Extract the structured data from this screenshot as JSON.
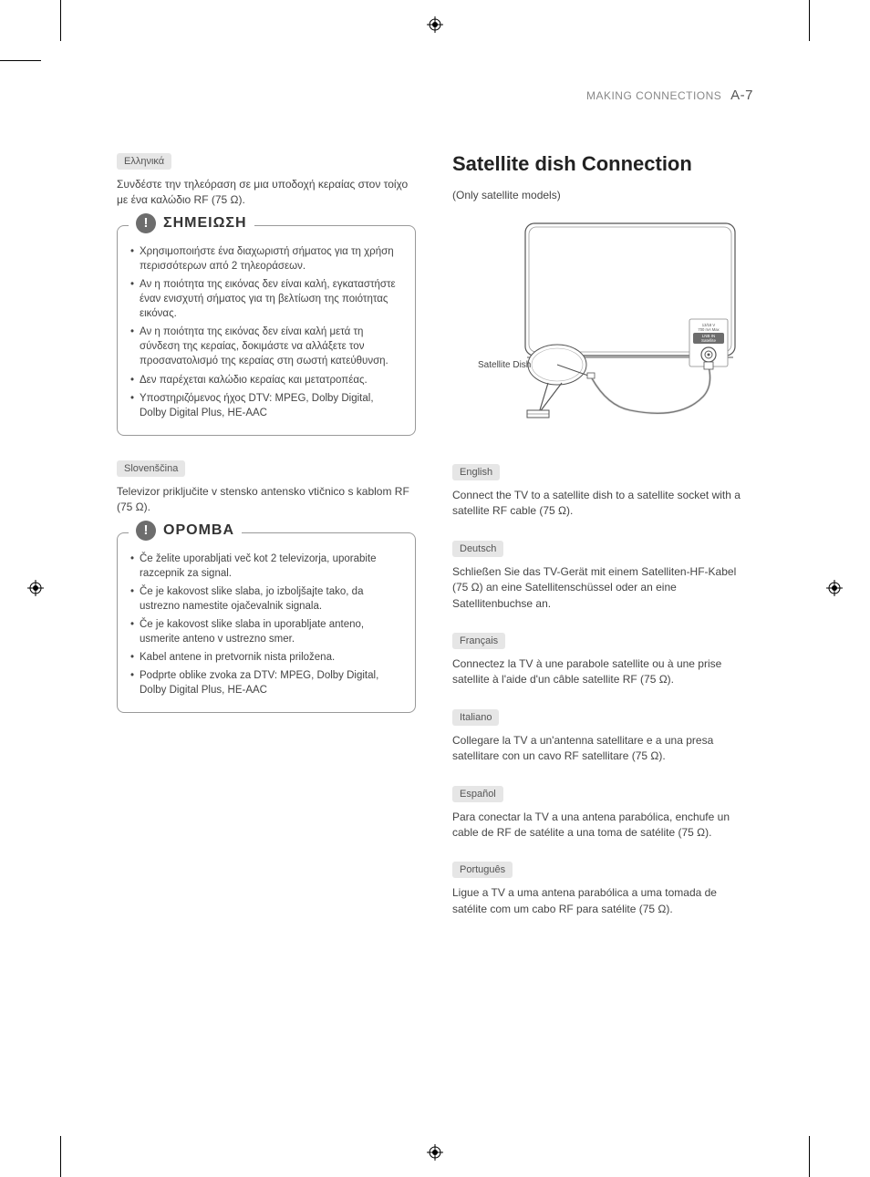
{
  "header": {
    "section": "MAKING CONNECTIONS",
    "page": "A-7"
  },
  "left": {
    "greek": {
      "tag": "Ελληνικά",
      "text": "Συνδέστε την τηλεόραση σε μια υποδοχή κεραίας στον τοίχο με ένα καλώδιο RF (75 Ω).",
      "note_title": "ΣΗΜΕΙΩΣΗ",
      "bullets": [
        "Χρησιμοποιήστε ένα διαχωριστή σήματος για τη χρήση περισσότερων από 2 τηλεοράσεων.",
        "Αν η ποιότητα της εικόνας δεν είναι καλή, εγκαταστήστε έναν ενισχυτή σήματος για τη βελτίωση της ποιότητας εικόνας.",
        "Αν η ποιότητα της εικόνας δεν είναι καλή μετά τη σύνδεση της κεραίας, δοκιμάστε να αλλάξετε τον προσανατολισμό της κεραίας στη σωστή κατεύθυνση.",
        "Δεν παρέχεται καλώδιο κεραίας και μετατροπέας.",
        "Υποστηριζόμενος ήχος DTV: MPEG, Dolby Digital, Dolby Digital Plus, HE-AAC"
      ]
    },
    "slovene": {
      "tag": "Slovenščina",
      "text": "Televizor priključite v stensko antensko vtičnico s kablom RF (75 Ω).",
      "note_title": "OPOMBA",
      "bullets": [
        "Če želite uporabljati več kot 2 televizorja, uporabite razcepnik za signal.",
        "Če je kakovost slike slaba, jo izboljšajte tako, da ustrezno namestite ojačevalnik signala.",
        "Če je kakovost slike slaba in uporabljate anteno, usmerite anteno v ustrezno smer.",
        "Kabel antene in pretvornik nista priložena.",
        "Podprte oblike zvoka za DTV: MPEG, Dolby Digital, Dolby Digital Plus, HE-AAC"
      ]
    }
  },
  "right": {
    "title": "Satellite dish Connection",
    "subtitle": "(Only satellite models)",
    "diagram": {
      "dish_label": "Satellite Dish",
      "port_line1": "13/18 V",
      "port_line2": "700 mA Max",
      "port_line3": "LNB IN",
      "port_line4": "Satellite"
    },
    "langs": [
      {
        "tag": "English",
        "text": "Connect the TV to a satellite dish to a satellite socket with a satellite RF cable (75 Ω)."
      },
      {
        "tag": "Deutsch",
        "text": "Schließen Sie das TV-Gerät mit einem Satelliten-HF-Kabel (75 Ω) an eine Satellitenschüssel oder an eine Satellitenbuchse an."
      },
      {
        "tag": "Français",
        "text": "Connectez la TV à une parabole satellite ou à une prise satellite à l'aide d'un câble satellite RF (75 Ω)."
      },
      {
        "tag": "Italiano",
        "text": "Collegare la TV a un'antenna satellitare e a una presa satellitare con un cavo RF satellitare (75 Ω)."
      },
      {
        "tag": "Español",
        "text": "Para conectar la TV a una antena parabólica, enchufe un cable de RF de satélite a una toma de satélite (75 Ω)."
      },
      {
        "tag": "Português",
        "text": "Ligue a TV a uma antena parabólica a uma tomada de satélite com um cabo RF para satélite (75 Ω)."
      }
    ]
  }
}
